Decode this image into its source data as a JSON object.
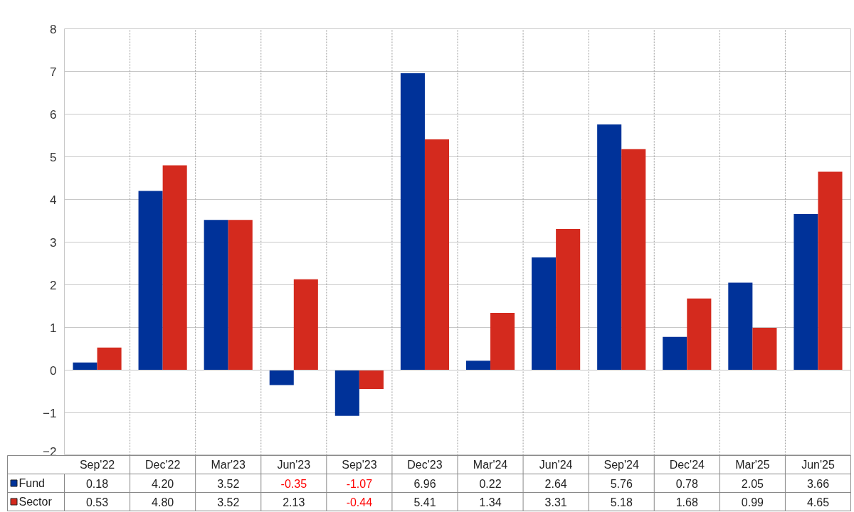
{
  "chart_data": {
    "type": "bar",
    "categories": [
      "Sep'22",
      "Dec'22",
      "Mar'23",
      "Jun'23",
      "Sep'23",
      "Dec'23",
      "Mar'24",
      "Jun'24",
      "Sep'24",
      "Dec'24",
      "Mar'25",
      "Jun'25"
    ],
    "series": [
      {
        "name": "Fund",
        "color": "#003299",
        "values": [
          0.18,
          4.2,
          3.52,
          -0.35,
          -1.07,
          6.96,
          0.22,
          2.64,
          5.76,
          0.78,
          2.05,
          3.66
        ],
        "value_labels": [
          "0.18",
          "4.20",
          "3.52",
          "-0.35",
          "-1.07",
          "6.96",
          "0.22",
          "2.64",
          "5.76",
          "0.78",
          "2.05",
          "3.66"
        ]
      },
      {
        "name": "Sector",
        "color": "#d42a1e",
        "values": [
          0.53,
          4.8,
          3.52,
          2.13,
          -0.44,
          5.41,
          1.34,
          3.31,
          5.18,
          1.68,
          0.99,
          4.65
        ],
        "value_labels": [
          "0.53",
          "4.80",
          "3.52",
          "2.13",
          "-0.44",
          "5.41",
          "1.34",
          "3.31",
          "5.18",
          "1.68",
          "0.99",
          "4.65"
        ]
      }
    ],
    "ylim": [
      -2,
      8
    ],
    "yticks": [
      -2,
      -1,
      0,
      1,
      2,
      3,
      4,
      5,
      6,
      7,
      8
    ],
    "grid": true,
    "legend": "bottom"
  }
}
